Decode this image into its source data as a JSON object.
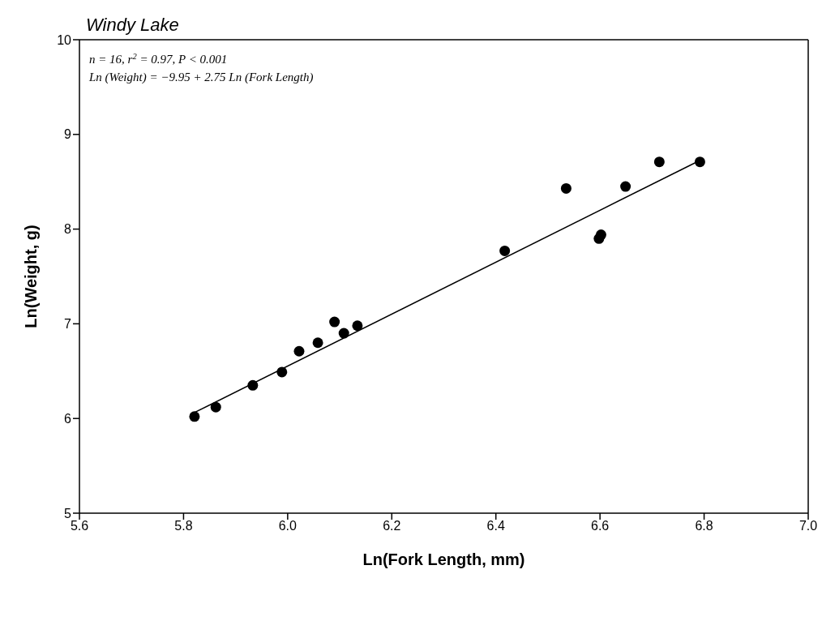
{
  "chart_data": {
    "type": "scatter",
    "title": "Windy Lake",
    "xlabel": "Ln(Fork Length, mm)",
    "ylabel": "Ln(Weight, g)",
    "annotations": [
      "n = 16, r$^{2}$ = 0.97, P < 0.001",
      "Ln (Weight) = −9.95 + 2.75 Ln (Fork Length)"
    ],
    "xlim": [
      5.6,
      7.0
    ],
    "xticks": [
      5.6,
      5.8,
      {
        "value": 6,
        "label": "6.0"
      },
      6.2,
      6.4,
      6.6,
      6.8,
      {
        "value": 7,
        "label": "7.0"
      }
    ],
    "ylim": [
      5,
      10
    ],
    "yticks": [
      5,
      6,
      7,
      8,
      9,
      10
    ],
    "series": [
      {
        "color": "#000000",
        "marker": "circle",
        "x": [
          5.821,
          5.862,
          5.933,
          5.989,
          6.022,
          6.058,
          6.09,
          6.108,
          6.134,
          6.417,
          6.535,
          6.598,
          6.602,
          6.649,
          6.714,
          6.792
        ],
        "values": [
          6.02,
          6.12,
          6.35,
          6.49,
          6.71,
          6.8,
          7.02,
          6.9,
          6.98,
          7.77,
          8.43,
          7.9,
          7.94,
          8.45,
          8.71,
          8.71
        ]
      },
      {
        "type": "line",
        "color": "#000000",
        "marker": "none",
        "line_style": "solid",
        "x": [
          5.82,
          6.79
        ],
        "values": [
          6.06,
          8.72
        ]
      }
    ]
  }
}
